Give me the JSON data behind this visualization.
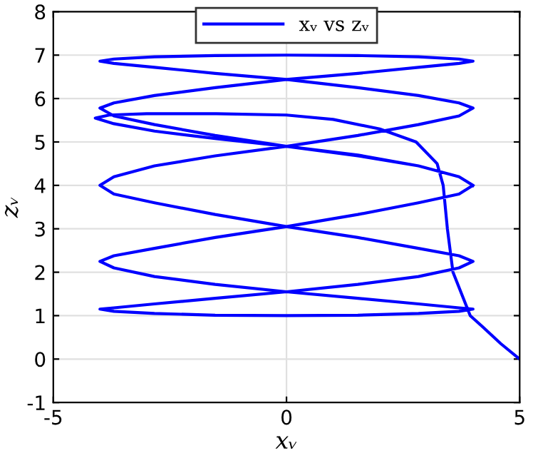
{
  "chart_data": {
    "type": "line",
    "xlabel": "xᵥ",
    "ylabel": "zᵥ",
    "xlim": [
      -5,
      5
    ],
    "ylim": [
      -1,
      8
    ],
    "xticks": [
      -5,
      0,
      5
    ],
    "yticks": [
      -1,
      0,
      1,
      2,
      3,
      4,
      5,
      6,
      7,
      8
    ],
    "grid": true,
    "legend": "top",
    "marker": "none",
    "line_style": "solid",
    "series": [
      {
        "name": "xᵥ vs zᵥ",
        "color": "#0000ff",
        "x": [
          5,
          4.6,
          4.2,
          3.94,
          3.57,
          3.45,
          3.36,
          3.23,
          2.78,
          2.0,
          1.0,
          0,
          -1.5,
          -3,
          -3.8,
          -4.1,
          -3.7,
          -2.83,
          -1.53,
          0,
          1.53,
          2.83,
          3.7,
          4,
          3.7,
          2.83,
          1.53,
          0,
          -1.53,
          -2.83,
          -3.7,
          -4,
          -3.7,
          -2.83,
          -1.53,
          0,
          1.53,
          2.83,
          3.7,
          4,
          3.7,
          2.83,
          1.53,
          0,
          -1.53,
          -2.83,
          -3.7,
          -4,
          -3.7,
          -2.83,
          -1.53,
          0,
          1.53,
          2.83,
          3.7,
          4,
          3.7,
          2.83,
          1.53,
          0,
          -1.53,
          -2.83,
          -3.7,
          -4,
          -3.7,
          -2.83,
          -1.53,
          0,
          1.53,
          2.83,
          3.7,
          4,
          3.7,
          2.83,
          1.53,
          0,
          -1.53,
          -2.83,
          -3.7,
          -4,
          -3.7,
          -2.83,
          -1.53,
          0,
          1.53,
          2.83,
          3.7,
          4,
          3.7,
          2.83,
          1.53,
          0,
          -1.53,
          -2.83,
          -3.7,
          -4,
          -3.7,
          -2.83,
          -1.53,
          0,
          1.53,
          2.83,
          3.7,
          4
        ],
        "values": [
          0,
          0.35,
          0.75,
          1.0,
          2.0,
          3.0,
          4.0,
          4.5,
          5.0,
          5.3,
          5.52,
          5.62,
          5.65,
          5.65,
          5.62,
          5.55,
          5.42,
          5.25,
          5.08,
          4.9,
          4.7,
          4.45,
          4.2,
          4.0,
          3.8,
          3.6,
          3.33,
          3.05,
          2.8,
          2.55,
          2.38,
          2.25,
          2.1,
          1.9,
          1.72,
          1.55,
          1.4,
          1.27,
          1.18,
          1.15,
          1.1,
          1.05,
          1.01,
          1.0,
          1.01,
          1.05,
          1.1,
          1.15,
          1.18,
          1.27,
          1.4,
          1.55,
          1.72,
          1.9,
          2.1,
          2.25,
          2.38,
          2.55,
          2.8,
          3.05,
          3.33,
          3.6,
          3.8,
          4.0,
          4.2,
          4.45,
          4.68,
          4.9,
          5.15,
          5.4,
          5.6,
          5.78,
          5.9,
          6.07,
          6.25,
          6.44,
          6.58,
          6.72,
          6.81,
          6.86,
          6.91,
          6.96,
          6.99,
          7.0,
          6.99,
          6.96,
          6.91,
          6.86,
          6.81,
          6.72,
          6.58,
          6.44,
          6.25,
          6.07,
          5.9,
          5.78,
          5.6,
          5.4,
          5.15,
          4.9,
          4.68,
          4.45,
          4.2,
          4.0
        ]
      }
    ]
  }
}
